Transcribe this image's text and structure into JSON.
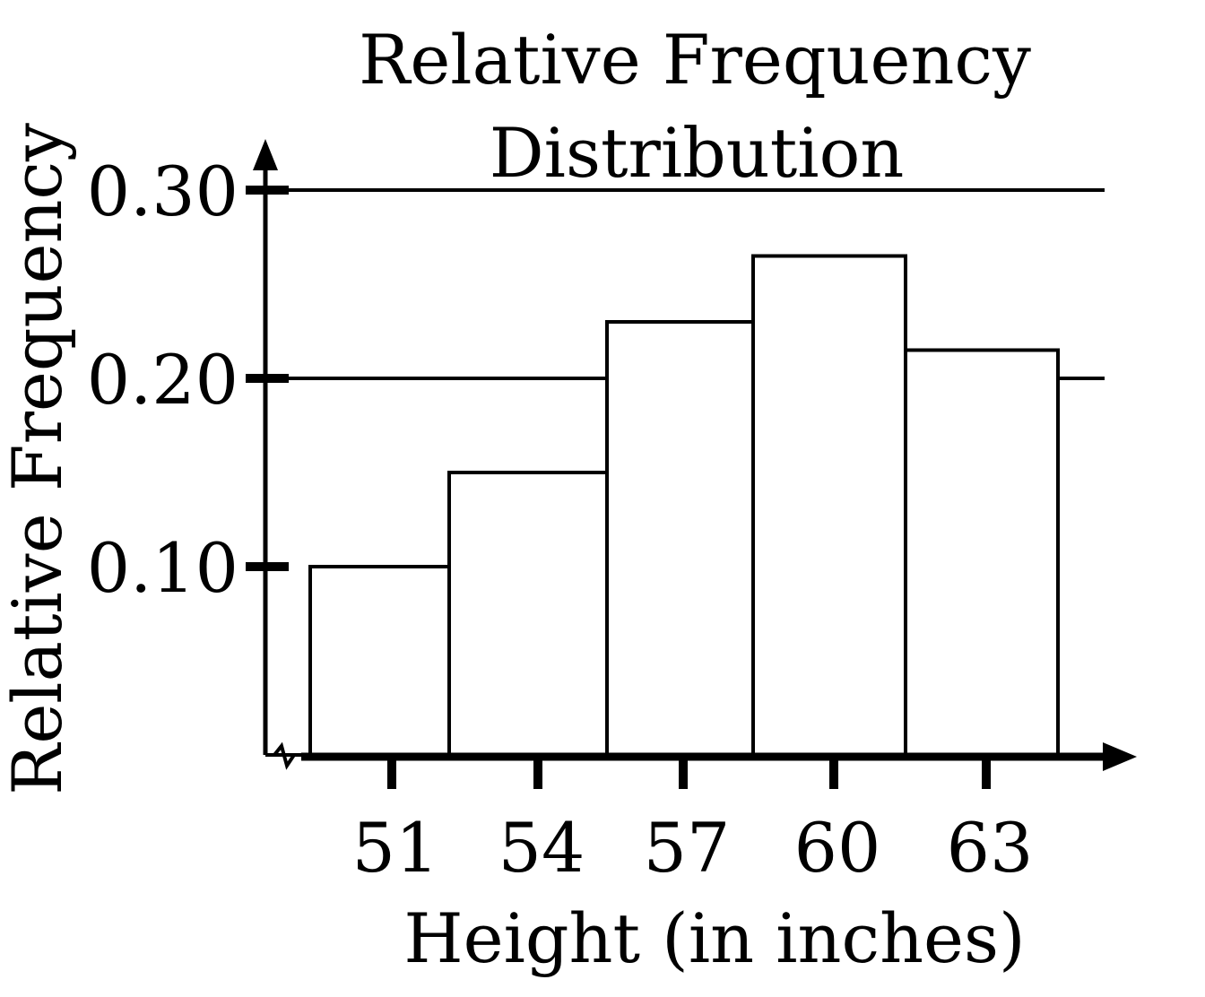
{
  "chart_data": {
    "type": "bar",
    "title_lines": [
      "Relative Frequency",
      "Distribution"
    ],
    "xlabel": "Height (in inches)",
    "ylabel": "Relative Frequency",
    "categories": [
      "51",
      "54",
      "57",
      "60",
      "63"
    ],
    "values": [
      0.1,
      0.15,
      0.23,
      0.265,
      0.215
    ],
    "y_ticks": [
      "0.10",
      "0.20",
      "0.30"
    ],
    "y_tick_values": [
      0.1,
      0.2,
      0.3
    ],
    "ylim": [
      0,
      0.3
    ],
    "grid": "horizontal at 0.20 and 0.30",
    "bar_color": "#ffffff",
    "line_color": "#000000"
  }
}
